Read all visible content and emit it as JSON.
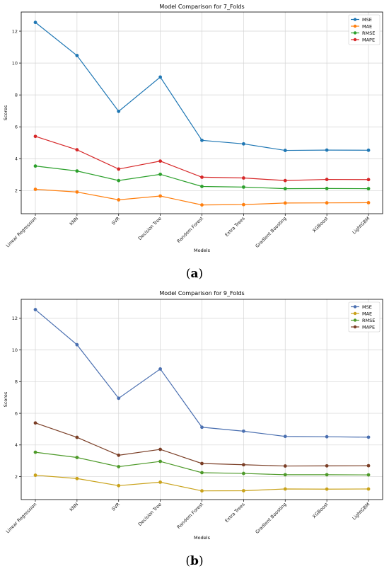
{
  "chart_data": [
    {
      "type": "line",
      "title": "Model Comparison for 7_Folds",
      "xlabel": "Models",
      "ylabel": "Scores",
      "caption_letter": "a",
      "ylim": [
        0.55,
        13.2
      ],
      "yticks": [
        2,
        4,
        6,
        8,
        10,
        12
      ],
      "grid": true,
      "legend_position": "top-right",
      "categories": [
        "Linear Regression",
        "KNN",
        "SVR",
        "Decision Tree",
        "Random Forest",
        "Extra Trees",
        "Gradient Boosting",
        "XGBoost",
        "LightGBM"
      ],
      "series": [
        {
          "name": "MSE",
          "color": "#1f77b4",
          "values": [
            12.55,
            10.47,
            6.97,
            9.12,
            5.15,
            4.93,
            4.52,
            4.54,
            4.53
          ]
        },
        {
          "name": "MAE",
          "color": "#ff7f0e",
          "values": [
            2.08,
            1.91,
            1.42,
            1.66,
            1.1,
            1.12,
            1.22,
            1.23,
            1.24
          ]
        },
        {
          "name": "RMSE",
          "color": "#2ca02c",
          "values": [
            3.54,
            3.23,
            2.63,
            3.02,
            2.26,
            2.22,
            2.12,
            2.13,
            2.12
          ]
        },
        {
          "name": "MAPE",
          "color": "#d62728",
          "values": [
            5.4,
            4.56,
            3.35,
            3.85,
            2.84,
            2.79,
            2.63,
            2.7,
            2.69
          ]
        }
      ]
    },
    {
      "type": "line",
      "title": "Model Comparison for 9_Folds",
      "xlabel": "Models",
      "ylabel": "Scores",
      "caption_letter": "b",
      "ylim": [
        0.55,
        13.2
      ],
      "yticks": [
        2,
        4,
        6,
        8,
        10,
        12
      ],
      "grid": true,
      "legend_position": "top-right",
      "categories": [
        "Linear Regression",
        "KNN",
        "SVR",
        "Decision Tree",
        "Random Forest",
        "Extra Trees",
        "Gradient Boosting",
        "XGBoost",
        "LightGBM"
      ],
      "series": [
        {
          "name": "MSE",
          "color": "#4a6fb0",
          "values": [
            12.55,
            10.33,
            6.95,
            8.8,
            5.12,
            4.87,
            4.54,
            4.52,
            4.49
          ]
        },
        {
          "name": "MAE",
          "color": "#c9a21a",
          "values": [
            2.09,
            1.88,
            1.43,
            1.65,
            1.1,
            1.11,
            1.22,
            1.21,
            1.22
          ]
        },
        {
          "name": "RMSE",
          "color": "#4e9a2a",
          "values": [
            3.54,
            3.21,
            2.63,
            2.96,
            2.25,
            2.2,
            2.12,
            2.12,
            2.11
          ]
        },
        {
          "name": "MAPE",
          "color": "#7b3f27",
          "values": [
            5.39,
            4.48,
            3.35,
            3.72,
            2.83,
            2.75,
            2.67,
            2.68,
            2.69
          ]
        }
      ]
    }
  ]
}
